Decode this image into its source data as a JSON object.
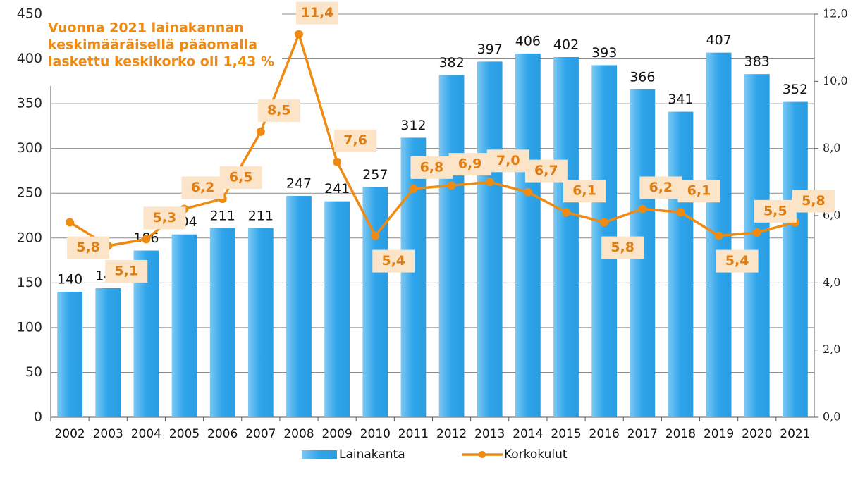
{
  "chart_data": {
    "type": "bar_line",
    "annotation": [
      "Vuonna 2021 lainakannan",
      "keskimääräisellä pääomalla",
      "laskettu keskikorko oli 1,43 %"
    ],
    "categories": [
      "2002",
      "2003",
      "2004",
      "2005",
      "2006",
      "2007",
      "2008",
      "2009",
      "2010",
      "2011",
      "2012",
      "2013",
      "2014",
      "2015",
      "2016",
      "2017",
      "2018",
      "2019",
      "2020",
      "2021"
    ],
    "series": [
      {
        "name": "Lainakanta",
        "color": "#2ea4ea",
        "type": "bar",
        "values": [
          140,
          144,
          186,
          204,
          211,
          211,
          247,
          241,
          257,
          312,
          382,
          397,
          406,
          402,
          393,
          366,
          341,
          407,
          383,
          352
        ]
      },
      {
        "name": "Korkokulut",
        "color": "#ef8a12",
        "type": "line",
        "axis": "y2",
        "values": [
          5.8,
          5.1,
          5.3,
          6.2,
          6.5,
          8.5,
          11.4,
          7.6,
          5.4,
          6.8,
          6.9,
          7.0,
          6.7,
          6.1,
          5.8,
          6.2,
          6.1,
          5.4,
          5.5,
          5.8
        ],
        "value_labels": [
          "5,8",
          "5,1",
          "5,3",
          "6,2",
          "6,5",
          "8,5",
          "11,4",
          "7,6",
          "5,4",
          "6,8",
          "6,9",
          "7,0",
          "6,7",
          "6,1",
          "5,8",
          "6,2",
          "6,1",
          "5,4",
          "5,5",
          "5,8"
        ]
      }
    ],
    "ylim": [
      0,
      450
    ],
    "yticks": [
      0,
      50,
      100,
      150,
      200,
      250,
      300,
      350,
      400,
      450
    ],
    "y2lim": [
      0,
      12
    ],
    "y2ticks": [
      {
        "value": 0,
        "label": "0,0"
      },
      {
        "value": 2,
        "label": "2,0"
      },
      {
        "value": 4,
        "label": "4,0"
      },
      {
        "value": 6,
        "label": "6,0"
      },
      {
        "value": 8,
        "label": "8,0"
      },
      {
        "value": 10,
        "label": "10,0"
      },
      {
        "value": 12,
        "label": "12,0"
      }
    ],
    "grid": true,
    "legend": "bottom"
  }
}
